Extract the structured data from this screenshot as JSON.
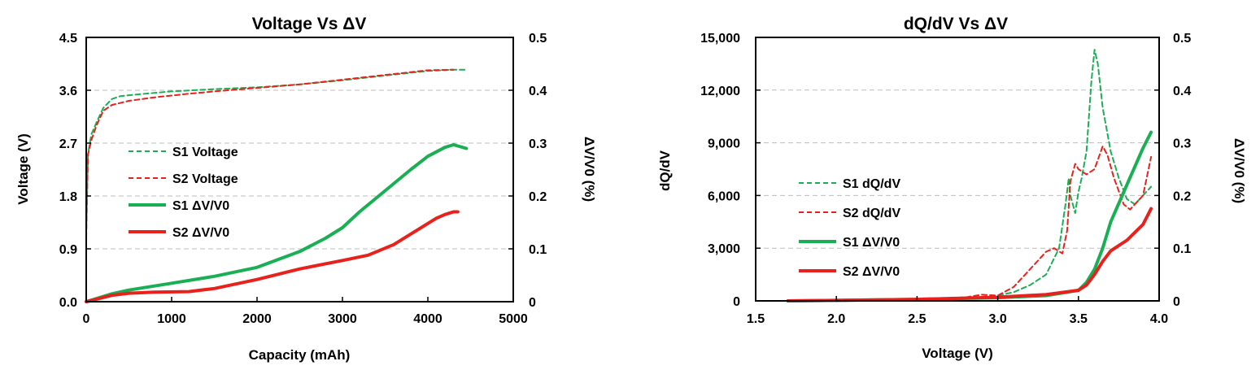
{
  "colors": {
    "s1": "#1aaf54",
    "s2": "#e8211c"
  },
  "chart_data": [
    {
      "type": "line",
      "title": "Voltage Vs ΔV",
      "xlabel": "Capacity (mAh)",
      "ylabel": "Voltage (V)",
      "y2label": "ΔV/V0 (%)",
      "xlim": [
        0,
        5000
      ],
      "ylim": [
        0,
        4.5
      ],
      "y2lim": [
        0,
        0.5
      ],
      "xticks": [
        "0",
        "1000",
        "2000",
        "3000",
        "4000",
        "5000"
      ],
      "yticks": [
        "0.0",
        "0.9",
        "1.8",
        "2.7",
        "3.6",
        "4.5"
      ],
      "y2ticks": [
        "0",
        "0.1",
        "0.2",
        "0.3",
        "0.4",
        "0.5"
      ],
      "grid": "horizontal dashed",
      "legend": "center-left",
      "series": [
        {
          "name": "S1 Voltage",
          "axis": "left",
          "style": "dashed",
          "color": "#1aaf54",
          "x": [
            0,
            20,
            60,
            120,
            200,
            300,
            400,
            600,
            1000,
            1500,
            2000,
            2500,
            3000,
            3500,
            4000,
            4300,
            4450
          ],
          "y": [
            1.2,
            2.5,
            2.85,
            3.05,
            3.3,
            3.45,
            3.5,
            3.53,
            3.58,
            3.62,
            3.65,
            3.7,
            3.77,
            3.85,
            3.93,
            3.95,
            3.95
          ]
        },
        {
          "name": "S2 Voltage",
          "axis": "left",
          "style": "dashed",
          "color": "#e8211c",
          "x": [
            0,
            20,
            60,
            120,
            200,
            300,
            500,
            800,
            1200,
            1500,
            2000,
            2500,
            3000,
            3500,
            4000,
            4300
          ],
          "y": [
            1.1,
            2.5,
            2.75,
            3.0,
            3.25,
            3.35,
            3.42,
            3.48,
            3.54,
            3.58,
            3.64,
            3.7,
            3.78,
            3.86,
            3.94,
            3.95
          ]
        },
        {
          "name": "S1 ΔV/V0",
          "axis": "right",
          "style": "solid",
          "color": "#1aaf54",
          "x": [
            0,
            100,
            300,
            500,
            1000,
            1500,
            2000,
            2500,
            2800,
            3000,
            3200,
            3500,
            3800,
            4000,
            4200,
            4300,
            4450
          ],
          "y": [
            0.0,
            0.005,
            0.015,
            0.022,
            0.035,
            0.048,
            0.065,
            0.095,
            0.12,
            0.14,
            0.17,
            0.21,
            0.25,
            0.275,
            0.292,
            0.297,
            0.29
          ]
        },
        {
          "name": "S2 ΔV/V0",
          "axis": "right",
          "style": "solid",
          "color": "#e8211c",
          "x": [
            0,
            100,
            300,
            500,
            800,
            1200,
            1500,
            2000,
            2500,
            3000,
            3300,
            3600,
            3900,
            4100,
            4200,
            4300,
            4350
          ],
          "y": [
            0.0,
            0.004,
            0.012,
            0.016,
            0.018,
            0.019,
            0.025,
            0.042,
            0.062,
            0.078,
            0.088,
            0.108,
            0.138,
            0.158,
            0.165,
            0.17,
            0.17
          ]
        }
      ]
    },
    {
      "type": "line",
      "title": "dQ/dV Vs ΔV",
      "xlabel": "Voltage (V)",
      "ylabel": "dQ/dV",
      "y2label": "ΔV/V0 (%)",
      "xlim": [
        1.5,
        4.0
      ],
      "ylim": [
        0,
        15000
      ],
      "y2lim": [
        0,
        0.5
      ],
      "xticks": [
        "1.5",
        "2.0",
        "2.5",
        "3.0",
        "3.5",
        "4.0"
      ],
      "yticks": [
        "0",
        "3,000",
        "6,000",
        "9,000",
        "12,000",
        "15,000"
      ],
      "y2ticks": [
        "0",
        "0.1",
        "0.2",
        "0.3",
        "0.4",
        "0.5"
      ],
      "grid": "horizontal dashed",
      "legend": "center-left",
      "series": [
        {
          "name": "S1 dQ/dV",
          "axis": "left",
          "style": "dashed",
          "color": "#1aaf54",
          "x": [
            2.5,
            2.8,
            3.0,
            3.1,
            3.2,
            3.3,
            3.38,
            3.42,
            3.44,
            3.45,
            3.48,
            3.5,
            3.52,
            3.55,
            3.58,
            3.6,
            3.62,
            3.65,
            3.7,
            3.75,
            3.8,
            3.85,
            3.9,
            3.95
          ],
          "y": [
            50,
            150,
            300,
            500,
            900,
            1500,
            3000,
            5500,
            7000,
            6000,
            5000,
            6200,
            7000,
            8500,
            12500,
            14300,
            13500,
            11000,
            8500,
            7000,
            5800,
            5500,
            6000,
            6500
          ]
        },
        {
          "name": "S2 dQ/dV",
          "axis": "left",
          "style": "dashed",
          "color": "#e8211c",
          "x": [
            2.5,
            2.8,
            2.9,
            3.0,
            3.1,
            3.2,
            3.3,
            3.35,
            3.4,
            3.43,
            3.45,
            3.48,
            3.5,
            3.55,
            3.6,
            3.65,
            3.68,
            3.72,
            3.78,
            3.82,
            3.85,
            3.9,
            3.95
          ],
          "y": [
            100,
            200,
            350,
            300,
            800,
            1800,
            2800,
            3000,
            2700,
            4000,
            6800,
            7800,
            7500,
            7200,
            7500,
            8800,
            8300,
            7000,
            5500,
            5200,
            5500,
            6000,
            8200
          ]
        },
        {
          "name": "S1 ΔV/V0",
          "axis": "right",
          "style": "solid",
          "color": "#1aaf54",
          "x": [
            1.7,
            2.0,
            2.5,
            3.0,
            3.3,
            3.5,
            3.55,
            3.6,
            3.65,
            3.7,
            3.8,
            3.9,
            3.95
          ],
          "y": [
            0.0,
            0.001,
            0.003,
            0.006,
            0.01,
            0.02,
            0.035,
            0.06,
            0.1,
            0.15,
            0.22,
            0.29,
            0.32
          ]
        },
        {
          "name": "S2 ΔV/V0",
          "axis": "right",
          "style": "solid",
          "color": "#e8211c",
          "x": [
            1.7,
            2.0,
            2.5,
            3.0,
            3.3,
            3.5,
            3.55,
            3.6,
            3.65,
            3.7,
            3.8,
            3.9,
            3.95
          ],
          "y": [
            0.0,
            0.001,
            0.003,
            0.007,
            0.012,
            0.02,
            0.03,
            0.05,
            0.075,
            0.095,
            0.115,
            0.145,
            0.175
          ]
        }
      ]
    }
  ]
}
